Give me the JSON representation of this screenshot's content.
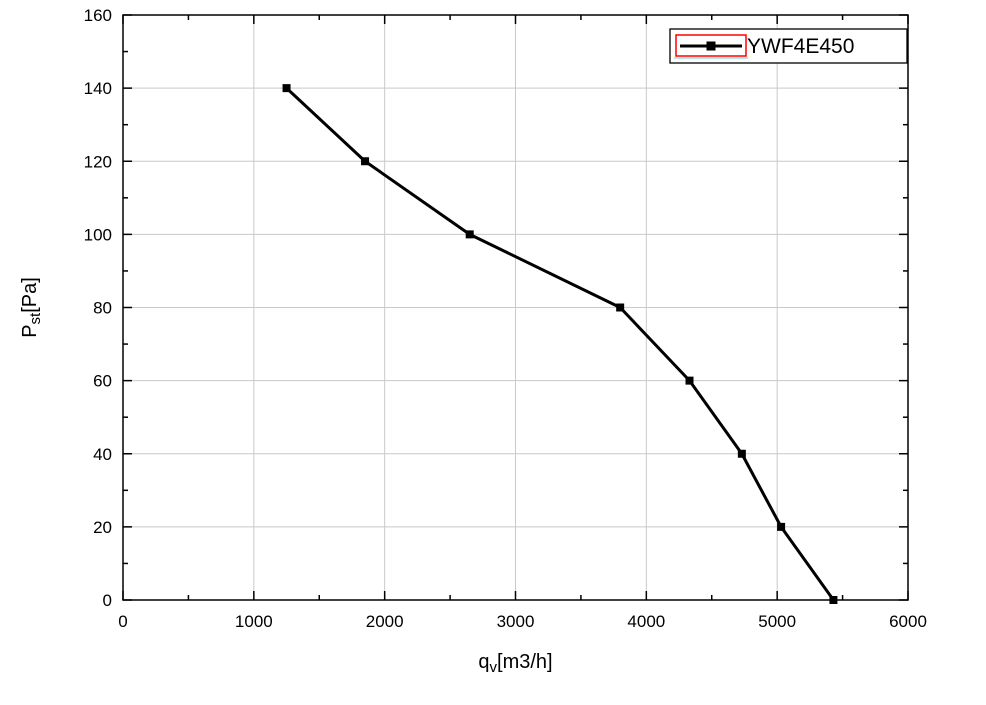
{
  "chart_data": {
    "type": "line",
    "title": "",
    "xlabel": {
      "prefix": "q",
      "sub": "v",
      "suffix": "[m3/h]",
      "text": "qv[m3/h]"
    },
    "ylabel": {
      "prefix": "P",
      "sub": "st",
      "suffix": "[Pa]",
      "text": "Pst[Pa]"
    },
    "xlim": [
      0,
      6000
    ],
    "ylim": [
      0,
      160
    ],
    "x_major_ticks": [
      0,
      1000,
      2000,
      3000,
      4000,
      5000,
      6000
    ],
    "y_major_ticks": [
      0,
      20,
      40,
      60,
      80,
      100,
      120,
      140,
      160
    ],
    "x_minor_step": 500,
    "y_minor_step": 10,
    "grid": {
      "vertical": true,
      "horizontal": true,
      "color": "#c9c9c9"
    },
    "axis_color": "#000000",
    "legend": {
      "position": "top-right",
      "entries": [
        {
          "label": "YWF4E450",
          "marker": "square",
          "line_color": "#000000",
          "swatch_border_color": "#ff0000",
          "swatch_accent_color": "#9fe0e0"
        }
      ]
    },
    "series": [
      {
        "name": "YWF4E450",
        "color": "#000000",
        "marker": "square",
        "points": [
          {
            "x": 1250,
            "y": 140
          },
          {
            "x": 1850,
            "y": 120
          },
          {
            "x": 2650,
            "y": 100
          },
          {
            "x": 3800,
            "y": 80
          },
          {
            "x": 4330,
            "y": 60
          },
          {
            "x": 4730,
            "y": 40
          },
          {
            "x": 5030,
            "y": 20
          },
          {
            "x": 5430,
            "y": 0
          }
        ]
      }
    ]
  }
}
